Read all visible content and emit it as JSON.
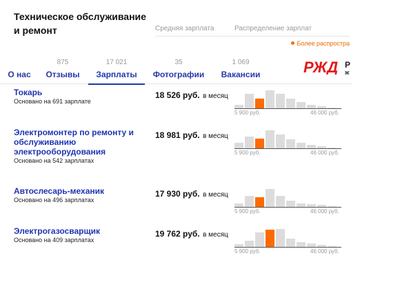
{
  "header": {
    "title": "Техническое обслуживание и ремонт",
    "avg_salary_label": "Средняя зарплата",
    "distribution_label": "Распределение зарплат",
    "legend_text": "Более распростра"
  },
  "tabs": [
    {
      "label": "О нас",
      "count": ""
    },
    {
      "label": "Отзывы",
      "count": "875"
    },
    {
      "label": "Зарплаты",
      "count": "17 021",
      "active": true
    },
    {
      "label": "Фотографии",
      "count": "35"
    },
    {
      "label": "Вакансии",
      "count": "1 069"
    }
  ],
  "logo": {
    "text": "РЖД",
    "side_letter": "Р",
    "side_letter2": "ж",
    "color": "#e21a1a"
  },
  "jobs": [
    {
      "title": "Токарь",
      "based_on": "Основано на 691 зарплате",
      "salary": "18 526 руб.",
      "period": "в месяц",
      "min": "5 900 руб.",
      "max": "46 000 руб.",
      "hist": [
        0.2,
        0.8,
        0.55,
        1.0,
        0.8,
        0.55,
        0.35,
        0.2,
        0.1,
        0.05
      ],
      "highlight": 2
    },
    {
      "title": "Электромонтер по ремонту и обслуживанию электрооборудования",
      "based_on": "Основано на 542 зарплатах",
      "salary": "18 981 руб.",
      "period": "в месяц",
      "min": "5 900 руб.",
      "max": "46 000 руб.",
      "hist": [
        0.3,
        0.65,
        0.55,
        1.0,
        0.75,
        0.5,
        0.3,
        0.2,
        0.1,
        0.05
      ],
      "highlight": 2
    },
    {
      "title": "Автослесарь-механик",
      "based_on": "Основано на 496 зарплатах",
      "salary": "17 930 руб.",
      "period": "в месяц",
      "min": "5 900 руб.",
      "max": "46 000 руб.",
      "hist": [
        0.2,
        0.6,
        0.55,
        1.0,
        0.6,
        0.35,
        0.2,
        0.15,
        0.1,
        0.05
      ],
      "highlight": 2
    },
    {
      "title": "Электрогазосварщик",
      "based_on": "Основано на 409 зарплатах",
      "salary": "19 762 руб.",
      "period": "в месяц",
      "min": "5 900 руб.",
      "max": "46 000 руб.",
      "hist": [
        0.15,
        0.35,
        0.8,
        0.95,
        1.0,
        0.45,
        0.25,
        0.2,
        0.1,
        0.05
      ],
      "highlight": 3
    }
  ],
  "colors": {
    "accent": "#ff6a00",
    "link": "#1f35b0",
    "bar": "#dcdcdc"
  }
}
